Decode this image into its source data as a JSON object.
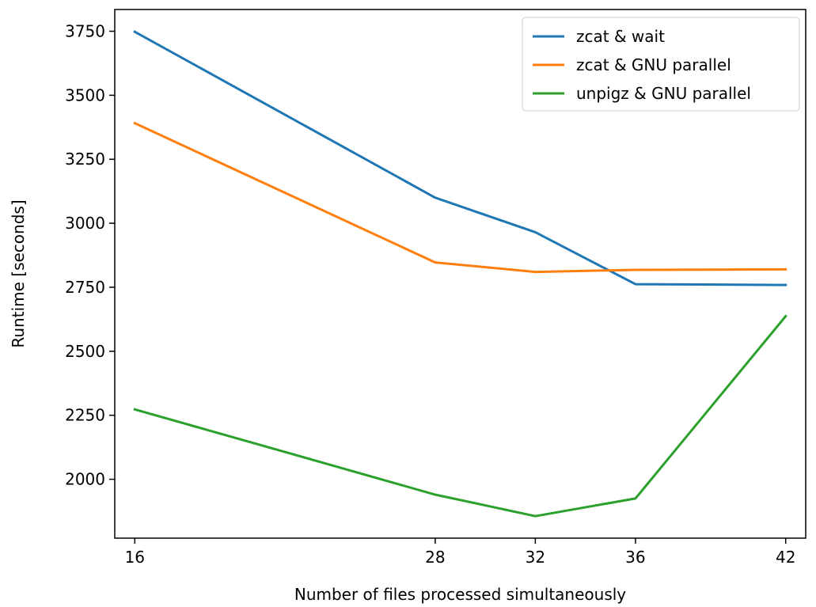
{
  "chart_data": {
    "type": "line",
    "title": "",
    "xlabel": "Number of files processed simultaneously",
    "ylabel": "Runtime [seconds]",
    "x": [
      16,
      28,
      32,
      36,
      42
    ],
    "xticks": [
      16,
      28,
      32,
      36,
      42
    ],
    "xlim": [
      15.2,
      42.8
    ],
    "yticks": [
      2000,
      2250,
      2500,
      2750,
      3000,
      3250,
      3500,
      3750
    ],
    "ylim": [
      1770,
      3835
    ],
    "grid": false,
    "legend_position": "top-right",
    "series": [
      {
        "name": "zcat & wait",
        "color": "#1f77b4",
        "values": [
          3748,
          3100,
          2965,
          2762,
          2759
        ]
      },
      {
        "name": "zcat & GNU parallel",
        "color": "#ff7f0e",
        "values": [
          3391,
          2847,
          2810,
          2818,
          2820
        ]
      },
      {
        "name": "unpigz & GNU parallel",
        "color": "#2ca02c",
        "values": [
          2273,
          1940,
          1856,
          1925,
          2637
        ]
      }
    ]
  }
}
